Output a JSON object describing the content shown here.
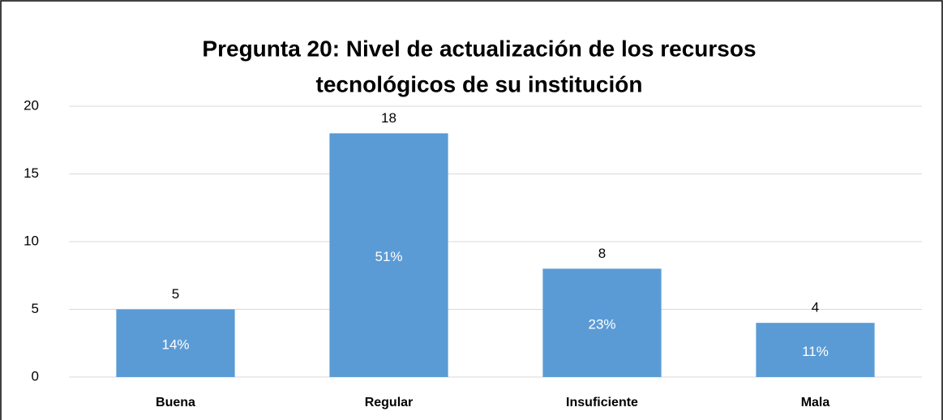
{
  "chart_data": {
    "type": "bar",
    "title": [
      "Pregunta 20: Nivel de actualización de los recursos",
      "tecnológicos de su institución"
    ],
    "categories": [
      "Buena",
      "Regular",
      "Insuficiente",
      "Mala"
    ],
    "values": [
      5,
      18,
      8,
      4
    ],
    "percent_labels": [
      "14%",
      "51%",
      "23%",
      "11%"
    ],
    "color": "#5b9bd5",
    "ylim": [
      0,
      20
    ],
    "yticks": [
      0,
      5,
      10,
      15,
      20
    ],
    "grid": true
  }
}
